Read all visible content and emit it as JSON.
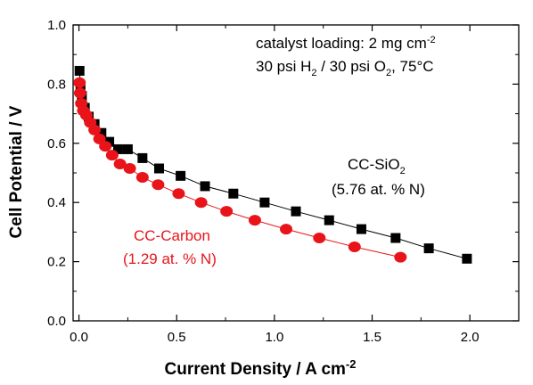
{
  "chart_data": {
    "type": "scatter",
    "xlabel": "Current Density / A cm",
    "xlabel_sup": "-2",
    "ylabel": "Cell Potential / V",
    "xlim": [
      -0.03,
      2.25
    ],
    "ylim": [
      0.0,
      1.0
    ],
    "xticks": [
      0.0,
      0.5,
      1.0,
      1.5,
      2.0
    ],
    "xtick_labels": [
      "0.0",
      "0.5",
      "1.0",
      "1.5",
      "2.0"
    ],
    "yticks": [
      0.0,
      0.2,
      0.4,
      0.6,
      0.8,
      1.0
    ],
    "ytick_labels": [
      "0.0",
      "0.2",
      "0.4",
      "0.6",
      "0.8",
      "1.0"
    ],
    "grid": false,
    "legend": "none",
    "annotations": {
      "line1_prefix": "catalyst loading: 2 mg cm",
      "line1_sup": "-2",
      "line2_a": "30 psi H",
      "line2_sub1": "2",
      "line2_b": " / 30 psi O",
      "line2_sub2": "2",
      "line2_c": ", 75°C",
      "sio2_label_a": "CC-SiO",
      "sio2_label_sub": "2",
      "sio2_label_b": "(5.76 at. % N)",
      "carbon_label_a": "CC-Carbon",
      "carbon_label_b": "(1.29 at. % N)"
    },
    "series": [
      {
        "name": "CC-SiO2",
        "marker": "square",
        "color": "#000000",
        "x": [
          0.003,
          0.008,
          0.015,
          0.03,
          0.05,
          0.08,
          0.115,
          0.155,
          0.2,
          0.25,
          0.325,
          0.41,
          0.52,
          0.645,
          0.79,
          0.95,
          1.11,
          1.28,
          1.445,
          1.62,
          1.79,
          1.985
        ],
        "y": [
          0.845,
          0.79,
          0.76,
          0.72,
          0.69,
          0.665,
          0.635,
          0.605,
          0.58,
          0.58,
          0.55,
          0.515,
          0.49,
          0.455,
          0.43,
          0.4,
          0.37,
          0.34,
          0.31,
          0.28,
          0.245,
          0.21
        ]
      },
      {
        "name": "CC-Carbon",
        "marker": "circle",
        "color": "#e8141a",
        "x": [
          0.003,
          0.006,
          0.012,
          0.022,
          0.038,
          0.058,
          0.08,
          0.105,
          0.135,
          0.17,
          0.21,
          0.26,
          0.325,
          0.405,
          0.51,
          0.625,
          0.755,
          0.9,
          1.06,
          1.23,
          1.41,
          1.645
        ],
        "y": [
          0.805,
          0.77,
          0.735,
          0.71,
          0.695,
          0.67,
          0.645,
          0.615,
          0.59,
          0.56,
          0.53,
          0.515,
          0.485,
          0.46,
          0.43,
          0.4,
          0.37,
          0.34,
          0.31,
          0.28,
          0.25,
          0.215
        ]
      }
    ],
    "colors": {
      "axes": "#000000",
      "series1": "#000000",
      "series2": "#e8141a"
    }
  }
}
